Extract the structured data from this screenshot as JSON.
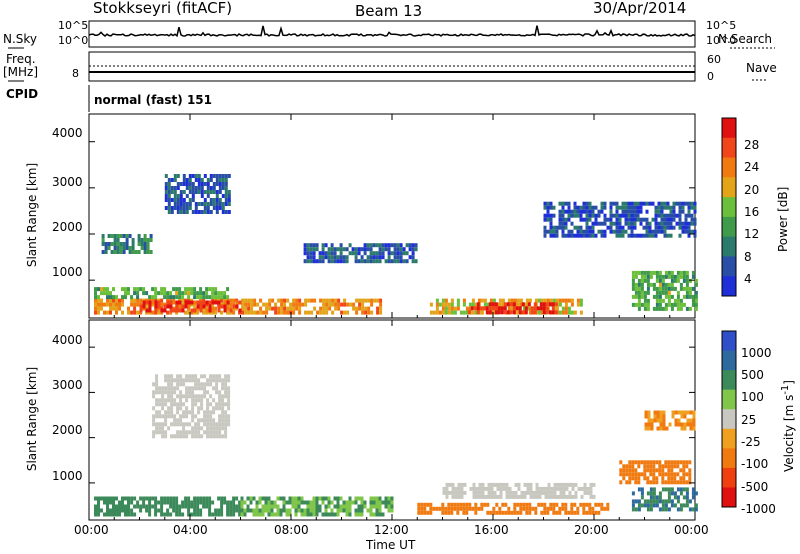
{
  "header": {
    "station": "Stokkseyri (fitACF)",
    "beam": "Beam 13",
    "date": "30/Apr/2014"
  },
  "params": {
    "nsky_label": "N.Sky",
    "nsearch_label": "N.Search",
    "freq_label": "Freq.",
    "freq_unit": "[MHz]",
    "nave_label": "Nave",
    "cpid_label": "CPID",
    "cpid_value": "normal (fast) 151",
    "noise_ticks_left": [
      "10^5",
      "10^0"
    ],
    "noise_ticks_right": [
      "10^5",
      "10^0"
    ],
    "freq_ticks": [
      "8"
    ],
    "nave_ticks": [
      "60",
      "0"
    ]
  },
  "colors": {
    "power": [
      "#1e2fd8",
      "#284ea6",
      "#2c7a6c",
      "#3f9a4a",
      "#6cbf3a",
      "#e3a41a",
      "#f07a10",
      "#f0461a",
      "#e01010"
    ],
    "velocity": [
      "#2f4fc8",
      "#2f6a9e",
      "#3c8a5a",
      "#7fc64a",
      "#c8c8c0",
      "#f0a020",
      "#f07a10",
      "#f04010",
      "#e01010"
    ]
  },
  "chart_data": [
    {
      "type": "heatmap",
      "title": "Power",
      "ylabel": "Slant Range [km]",
      "xlabel": "Time UT",
      "xlim": [
        "00:00",
        "24:00"
      ],
      "ylim": [
        180,
        4600
      ],
      "xticks": [
        "00:00",
        "04:00",
        "08:00",
        "12:00",
        "16:00",
        "20:00",
        "00:00"
      ],
      "yticks": [
        1000,
        2000,
        3000,
        4000
      ],
      "colorbar": {
        "label": "Power [dB]",
        "ticks": [
          "4",
          "8",
          "12",
          "16",
          "20",
          "24",
          "28"
        ],
        "range": [
          0,
          32
        ]
      },
      "regions": [
        {
          "t": [
            0.2,
            11.5
          ],
          "r": [
            300,
            600
          ],
          "value": 22
        },
        {
          "t": [
            2.0,
            6.0
          ],
          "r": [
            350,
            560
          ],
          "value": 28
        },
        {
          "t": [
            0.2,
            5.5
          ],
          "r": [
            600,
            850
          ],
          "value": 14
        },
        {
          "t": [
            13.5,
            19.5
          ],
          "r": [
            300,
            600
          ],
          "value": 20
        },
        {
          "t": [
            15.0,
            18.5
          ],
          "r": [
            330,
            520
          ],
          "value": 29
        },
        {
          "t": [
            21.5,
            24.0
          ],
          "r": [
            400,
            1200
          ],
          "value": 14
        },
        {
          "t": [
            3.0,
            5.5
          ],
          "r": [
            2500,
            3300
          ],
          "value": 5
        },
        {
          "t": [
            0.5,
            2.5
          ],
          "r": [
            1600,
            2000
          ],
          "value": 10
        },
        {
          "t": [
            8.5,
            13.0
          ],
          "r": [
            1400,
            1800
          ],
          "value": 6
        },
        {
          "t": [
            18.0,
            24.0
          ],
          "r": [
            2000,
            2700
          ],
          "value": 5
        }
      ]
    },
    {
      "type": "heatmap",
      "title": "Velocity",
      "ylabel": "Slant Range [km]",
      "xlabel": "Time UT",
      "xlim": [
        "00:00",
        "24:00"
      ],
      "ylim": [
        180,
        4600
      ],
      "xticks": [
        "00:00",
        "04:00",
        "08:00",
        "12:00",
        "16:00",
        "20:00",
        "00:00"
      ],
      "yticks": [
        1000,
        2000,
        3000,
        4000
      ],
      "colorbar": {
        "label": "Velocity [m s^-1]",
        "ticks": [
          "1000",
          "500",
          "100",
          "25",
          "-25",
          "-100",
          "-500",
          "-1000"
        ]
      },
      "regions": [
        {
          "t": [
            0.2,
            6.0
          ],
          "r": [
            300,
            700
          ],
          "value": 150
        },
        {
          "t": [
            6.0,
            12.0
          ],
          "r": [
            300,
            700
          ],
          "value": 60
        },
        {
          "t": [
            2.5,
            5.5
          ],
          "r": [
            2000,
            3400
          ],
          "value": 0
        },
        {
          "t": [
            13.0,
            20.5
          ],
          "r": [
            330,
            560
          ],
          "value": -150
        },
        {
          "t": [
            14.0,
            20.0
          ],
          "r": [
            700,
            1000
          ],
          "value": 0
        },
        {
          "t": [
            21.0,
            23.8
          ],
          "r": [
            1000,
            1500
          ],
          "value": -200
        },
        {
          "t": [
            21.5,
            24.0
          ],
          "r": [
            400,
            900
          ],
          "value": 300
        },
        {
          "t": [
            22.0,
            24.0
          ],
          "r": [
            2200,
            2600
          ],
          "value": -60
        }
      ]
    }
  ]
}
